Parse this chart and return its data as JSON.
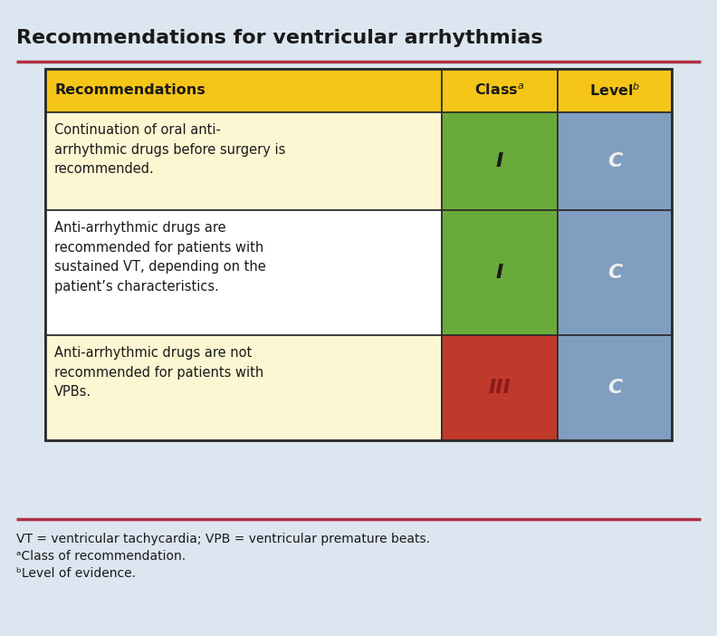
{
  "title": "Recommendations for ventricular arrhythmias",
  "bg_color": "#dce6f0",
  "outer_border_color": "#c0392b",
  "table_border_color": "#2c2c2c",
  "header_bg": "#f5c518",
  "row_bgs": [
    "#fdf6d3",
    "#ffffff",
    "#fdf6d3"
  ],
  "green_bg": "#6aaa3a",
  "red_bg": "#c0392b",
  "blue_bg": "#7f9ec0",
  "header_text_color": "#1a1a1a",
  "recommendations": [
    "Continuation of oral anti-\narrhythmic drugs before surgery is\nrecommended.",
    "Anti-arrhythmic drugs are\nrecommended for patients with\nsustained VT, depending on the\npatient’s characteristics.",
    "Anti-arrhythmic drugs are not\nrecommended for patients with\nVPBs."
  ],
  "classes": [
    "I",
    "I",
    "III"
  ],
  "levels": [
    "C",
    "C",
    "C"
  ],
  "class_colors": [
    "#6aaa3a",
    "#6aaa3a",
    "#c0392b"
  ],
  "class_text_colors": [
    "#1a1a1a",
    "#1a1a1a",
    "#8b1a1a"
  ],
  "level_color": "#7f9ec0",
  "footnotes": [
    "VT = ventricular tachycardia; VPB = ventricular premature beats.",
    "ᵃClass of recommendation.",
    "ᵇLevel of evidence."
  ],
  "title_fontsize": 16,
  "header_fontsize": 11.5,
  "cell_fontsize": 10.5,
  "footnote_fontsize": 10,
  "fig_width": 7.92,
  "fig_height": 7.02,
  "dpi": 100
}
